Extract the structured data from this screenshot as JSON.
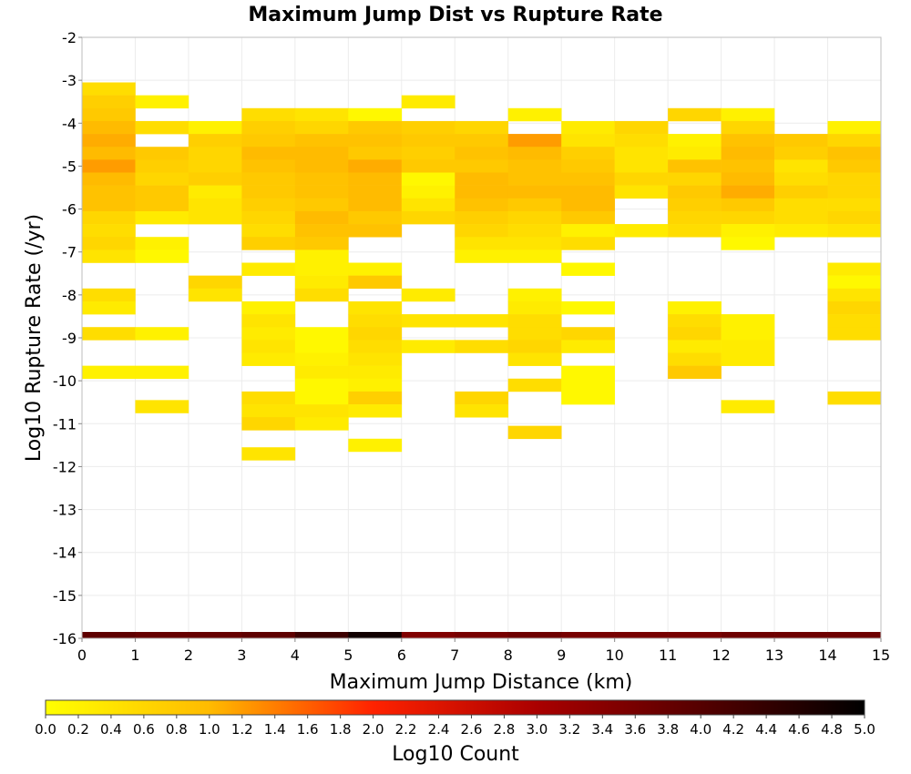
{
  "chart_data": {
    "type": "heatmap",
    "title": "Maximum Jump Dist vs Rupture Rate",
    "xlabel": "Maximum Jump Distance (km)",
    "ylabel": "Log10 Rupture Rate (/yr)",
    "xlim": [
      0,
      15
    ],
    "ylim": [
      -16,
      -2
    ],
    "x_ticks": [
      "0",
      "1",
      "2",
      "3",
      "4",
      "5",
      "6",
      "7",
      "8",
      "9",
      "10",
      "11",
      "12",
      "13",
      "14",
      "15"
    ],
    "y_ticks": [
      "-2",
      "-3",
      "-4",
      "-5",
      "-6",
      "-7",
      "-8",
      "-9",
      "-10",
      "-11",
      "-12",
      "-13",
      "-14",
      "-15",
      "-16"
    ],
    "x_bin_width": 1,
    "y_bin_height": 0.3,
    "grid": true,
    "colorbar": {
      "label": "Log10 Count",
      "range": [
        0,
        5
      ],
      "ticks": [
        "0.0",
        "0.2",
        "0.4",
        "0.6",
        "0.8",
        "1.0",
        "1.2",
        "1.4",
        "1.6",
        "1.8",
        "2.0",
        "2.2",
        "2.4",
        "2.6",
        "2.8",
        "3.0",
        "3.2",
        "3.4",
        "3.6",
        "3.8",
        "4.0",
        "4.2",
        "4.4",
        "4.6",
        "4.8",
        "5.0"
      ],
      "colors": [
        "#ffff00",
        "#ff9900",
        "#ff2200",
        "#990000",
        "#000000"
      ]
    },
    "columns": [
      {
        "x": 0,
        "cells": [
          [
            -3.2,
            0.5
          ],
          [
            -3.5,
            0.7
          ],
          [
            -3.8,
            0.8
          ],
          [
            -4.1,
            1.0
          ],
          [
            -4.4,
            1.1
          ],
          [
            -4.7,
            1.0
          ],
          [
            -5.0,
            1.2
          ],
          [
            -5.3,
            1.0
          ],
          [
            -5.6,
            0.9
          ],
          [
            -5.9,
            0.9
          ],
          [
            -6.2,
            0.6
          ],
          [
            -6.5,
            0.5
          ],
          [
            -6.8,
            0.6
          ],
          [
            -7.1,
            0.4
          ],
          [
            -8.0,
            0.5
          ],
          [
            -8.3,
            0.3
          ],
          [
            -8.9,
            0.5
          ],
          [
            -9.8,
            0.2
          ]
        ]
      },
      {
        "x": 1,
        "cells": [
          [
            -3.5,
            0.2
          ],
          [
            -4.1,
            0.5
          ],
          [
            -4.7,
            0.8
          ],
          [
            -5.0,
            0.7
          ],
          [
            -5.3,
            0.6
          ],
          [
            -5.6,
            0.8
          ],
          [
            -5.9,
            0.8
          ],
          [
            -6.2,
            0.3
          ],
          [
            -6.8,
            0.2
          ],
          [
            -7.1,
            0.1
          ],
          [
            -8.9,
            0.2
          ],
          [
            -9.8,
            0.2
          ],
          [
            -10.6,
            0.4
          ]
        ]
      },
      {
        "x": 2,
        "cells": [
          [
            -4.1,
            0.2
          ],
          [
            -4.4,
            0.7
          ],
          [
            -4.7,
            0.6
          ],
          [
            -5.0,
            0.6
          ],
          [
            -5.3,
            0.7
          ],
          [
            -5.6,
            0.3
          ],
          [
            -5.9,
            0.4
          ],
          [
            -6.2,
            0.4
          ],
          [
            -7.7,
            0.6
          ],
          [
            -8.0,
            0.4
          ]
        ]
      },
      {
        "x": 3,
        "cells": [
          [
            -3.8,
            0.5
          ],
          [
            -4.1,
            0.7
          ],
          [
            -4.4,
            0.8
          ],
          [
            -4.7,
            1.0
          ],
          [
            -5.0,
            0.9
          ],
          [
            -5.3,
            0.8
          ],
          [
            -5.6,
            0.8
          ],
          [
            -5.9,
            0.7
          ],
          [
            -6.2,
            0.6
          ],
          [
            -6.5,
            0.5
          ],
          [
            -6.8,
            0.7
          ],
          [
            -7.4,
            0.3
          ],
          [
            -8.3,
            0.2
          ],
          [
            -8.6,
            0.4
          ],
          [
            -8.9,
            0.3
          ],
          [
            -9.2,
            0.4
          ],
          [
            -9.5,
            0.3
          ],
          [
            -10.4,
            0.5
          ],
          [
            -10.7,
            0.4
          ],
          [
            -11.0,
            0.6
          ],
          [
            -11.7,
            0.4
          ]
        ]
      },
      {
        "x": 4,
        "cells": [
          [
            -3.8,
            0.4
          ],
          [
            -4.1,
            0.6
          ],
          [
            -4.4,
            0.9
          ],
          [
            -4.7,
            1.0
          ],
          [
            -5.0,
            1.0
          ],
          [
            -5.3,
            0.9
          ],
          [
            -5.6,
            0.9
          ],
          [
            -5.9,
            0.8
          ],
          [
            -6.2,
            1.0
          ],
          [
            -6.5,
            0.9
          ],
          [
            -6.8,
            0.8
          ],
          [
            -7.1,
            0.2
          ],
          [
            -7.4,
            0.2
          ],
          [
            -7.7,
            0.3
          ],
          [
            -8.0,
            0.5
          ],
          [
            -8.9,
            0.1
          ],
          [
            -9.2,
            0.1
          ],
          [
            -9.5,
            0.2
          ],
          [
            -9.8,
            0.3
          ],
          [
            -10.1,
            0.1
          ],
          [
            -10.4,
            0.1
          ],
          [
            -10.7,
            0.4
          ],
          [
            -11.0,
            0.3
          ]
        ]
      },
      {
        "x": 5,
        "cells": [
          [
            -3.8,
            0.1
          ],
          [
            -4.1,
            0.8
          ],
          [
            -4.4,
            0.9
          ],
          [
            -4.7,
            0.8
          ],
          [
            -5.0,
            1.1
          ],
          [
            -5.3,
            1.0
          ],
          [
            -5.6,
            1.0
          ],
          [
            -5.9,
            1.0
          ],
          [
            -6.2,
            0.8
          ],
          [
            -6.5,
            0.9
          ],
          [
            -7.4,
            0.2
          ],
          [
            -7.7,
            0.8
          ],
          [
            -8.3,
            0.4
          ],
          [
            -8.6,
            0.5
          ],
          [
            -8.9,
            0.6
          ],
          [
            -9.2,
            0.5
          ],
          [
            -9.5,
            0.4
          ],
          [
            -9.8,
            0.3
          ],
          [
            -10.1,
            0.2
          ],
          [
            -10.4,
            0.7
          ],
          [
            -10.7,
            0.3
          ],
          [
            -11.5,
            0.2
          ]
        ]
      },
      {
        "x": 6,
        "cells": [
          [
            -3.5,
            0.3
          ],
          [
            -4.1,
            0.7
          ],
          [
            -4.4,
            0.8
          ],
          [
            -4.7,
            0.7
          ],
          [
            -5.0,
            0.8
          ],
          [
            -5.3,
            0.1
          ],
          [
            -5.6,
            0.2
          ],
          [
            -5.9,
            0.4
          ],
          [
            -6.2,
            0.6
          ],
          [
            -8.0,
            0.3
          ],
          [
            -8.6,
            0.4
          ],
          [
            -9.2,
            0.3
          ]
        ]
      },
      {
        "x": 7,
        "cells": [
          [
            -4.1,
            0.6
          ],
          [
            -4.4,
            0.8
          ],
          [
            -4.7,
            0.9
          ],
          [
            -5.0,
            0.8
          ],
          [
            -5.3,
            1.0
          ],
          [
            -5.6,
            1.0
          ],
          [
            -5.9,
            0.9
          ],
          [
            -6.2,
            0.7
          ],
          [
            -6.5,
            0.6
          ],
          [
            -6.8,
            0.4
          ],
          [
            -7.1,
            0.2
          ],
          [
            -8.6,
            0.4
          ],
          [
            -9.2,
            0.5
          ],
          [
            -10.4,
            0.6
          ],
          [
            -10.7,
            0.4
          ]
        ]
      },
      {
        "x": 8,
        "cells": [
          [
            -3.8,
            0.2
          ],
          [
            -4.4,
            1.2
          ],
          [
            -4.7,
            1.0
          ],
          [
            -5.0,
            0.9
          ],
          [
            -5.3,
            0.9
          ],
          [
            -5.6,
            1.0
          ],
          [
            -5.9,
            0.8
          ],
          [
            -6.2,
            0.6
          ],
          [
            -6.5,
            0.5
          ],
          [
            -6.8,
            0.4
          ],
          [
            -7.1,
            0.2
          ],
          [
            -8.0,
            0.2
          ],
          [
            -8.3,
            0.3
          ],
          [
            -8.6,
            0.5
          ],
          [
            -8.9,
            0.5
          ],
          [
            -9.2,
            0.6
          ],
          [
            -9.5,
            0.4
          ],
          [
            -10.1,
            0.5
          ],
          [
            -11.2,
            0.6
          ]
        ]
      },
      {
        "x": 9,
        "cells": [
          [
            -4.1,
            0.3
          ],
          [
            -4.4,
            0.4
          ],
          [
            -4.7,
            0.7
          ],
          [
            -5.0,
            0.8
          ],
          [
            -5.3,
            0.9
          ],
          [
            -5.6,
            1.0
          ],
          [
            -5.9,
            1.0
          ],
          [
            -6.2,
            0.8
          ],
          [
            -6.5,
            0.2
          ],
          [
            -6.8,
            0.5
          ],
          [
            -7.4,
            0.1
          ],
          [
            -8.3,
            0.1
          ],
          [
            -8.9,
            0.6
          ],
          [
            -9.2,
            0.3
          ],
          [
            -9.8,
            0.1
          ],
          [
            -10.1,
            0.1
          ],
          [
            -10.4,
            0.1
          ]
        ]
      },
      {
        "x": 10,
        "cells": [
          [
            -4.1,
            0.6
          ],
          [
            -4.4,
            0.5
          ],
          [
            -4.7,
            0.4
          ],
          [
            -5.0,
            0.4
          ],
          [
            -5.3,
            0.6
          ],
          [
            -5.6,
            0.4
          ],
          [
            -6.5,
            0.3
          ]
        ]
      },
      {
        "x": 11,
        "cells": [
          [
            -3.8,
            0.6
          ],
          [
            -4.4,
            0.2
          ],
          [
            -4.7,
            0.3
          ],
          [
            -5.0,
            0.9
          ],
          [
            -5.3,
            0.6
          ],
          [
            -5.6,
            0.8
          ],
          [
            -5.9,
            0.7
          ],
          [
            -6.2,
            0.6
          ],
          [
            -6.5,
            0.5
          ],
          [
            -8.3,
            0.2
          ],
          [
            -8.6,
            0.5
          ],
          [
            -8.9,
            0.6
          ],
          [
            -9.2,
            0.3
          ],
          [
            -9.5,
            0.5
          ],
          [
            -9.8,
            0.8
          ]
        ]
      },
      {
        "x": 12,
        "cells": [
          [
            -3.8,
            0.2
          ],
          [
            -4.1,
            0.6
          ],
          [
            -4.4,
            0.9
          ],
          [
            -4.7,
            1.0
          ],
          [
            -5.0,
            0.9
          ],
          [
            -5.3,
            1.0
          ],
          [
            -5.6,
            1.1
          ],
          [
            -5.9,
            0.8
          ],
          [
            -6.2,
            0.6
          ],
          [
            -6.5,
            0.2
          ],
          [
            -6.8,
            0.1
          ],
          [
            -8.6,
            0.2
          ],
          [
            -8.9,
            0.2
          ],
          [
            -9.2,
            0.3
          ],
          [
            -9.5,
            0.3
          ],
          [
            -10.6,
            0.3
          ]
        ]
      },
      {
        "x": 13,
        "cells": [
          [
            -4.4,
            0.8
          ],
          [
            -4.7,
            0.7
          ],
          [
            -5.0,
            0.4
          ],
          [
            -5.3,
            0.5
          ],
          [
            -5.6,
            0.7
          ],
          [
            -5.9,
            0.5
          ],
          [
            -6.2,
            0.5
          ],
          [
            -6.5,
            0.3
          ]
        ]
      },
      {
        "x": 14,
        "cells": [
          [
            -4.1,
            0.2
          ],
          [
            -4.4,
            0.6
          ],
          [
            -4.7,
            0.9
          ],
          [
            -5.0,
            0.8
          ],
          [
            -5.3,
            0.6
          ],
          [
            -5.6,
            0.6
          ],
          [
            -5.9,
            0.5
          ],
          [
            -6.2,
            0.6
          ],
          [
            -6.5,
            0.4
          ],
          [
            -7.4,
            0.3
          ],
          [
            -7.7,
            0.1
          ],
          [
            -8.0,
            0.4
          ],
          [
            -8.3,
            0.6
          ],
          [
            -8.6,
            0.5
          ],
          [
            -8.9,
            0.5
          ],
          [
            -10.4,
            0.5
          ]
        ]
      }
    ],
    "bottom_row": {
      "y": -16,
      "values": [
        3.9,
        3.8,
        3.8,
        3.9,
        4.3,
        4.8,
        3.5,
        3.6,
        3.7,
        3.6,
        3.6,
        3.6,
        3.7,
        3.7,
        3.7
      ]
    }
  }
}
